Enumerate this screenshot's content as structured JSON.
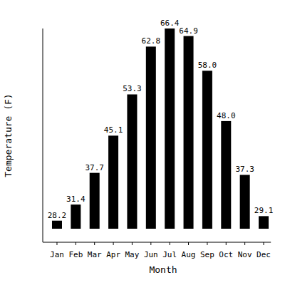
{
  "chart_data": {
    "type": "bar",
    "x_label": "Month",
    "y_label": "Temperature (F)",
    "categories": [
      "Jan",
      "Feb",
      "Mar",
      "Apr",
      "May",
      "Jun",
      "Jul",
      "Aug",
      "Sep",
      "Oct",
      "Nov",
      "Dec"
    ],
    "values": [
      28.2,
      31.4,
      37.7,
      45.1,
      53.3,
      62.8,
      66.4,
      64.9,
      58.0,
      48.0,
      37.3,
      29.1
    ],
    "value_labels": [
      "28.2",
      "31.4",
      "37.7",
      "45.1",
      "53.3",
      "62.8",
      "66.4",
      "64.9",
      "58.0",
      "48.0",
      "37.3",
      "29.1"
    ],
    "color": "#000000",
    "ylim": [
      26.6,
      66.4
    ],
    "grid": false,
    "data_labels": true,
    "tick_labels": "x"
  }
}
